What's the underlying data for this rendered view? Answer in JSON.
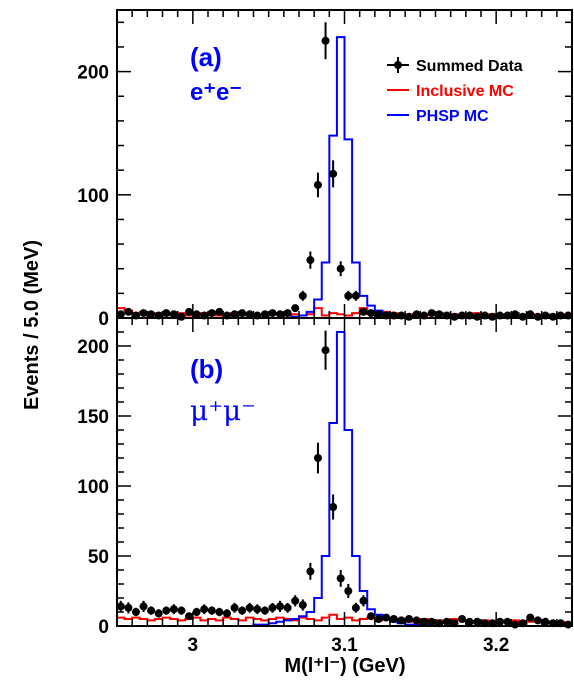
{
  "colors": {
    "data": "#000000",
    "inclusive_mc": "#ff0000",
    "phsp_mc": "#0000ff",
    "axis": "#000000"
  },
  "y_axis_title": "Events / 5.0 (MeV)",
  "x_axis_title": "M(l⁺l⁻) (GeV)",
  "legend": {
    "data": "Summed Data",
    "inclusive": "Inclusive MC",
    "phsp": "PHSP MC"
  },
  "panels": {
    "a": {
      "tag": "(a)",
      "channel": "e⁺e⁻"
    },
    "b": {
      "tag": "(b)",
      "channel": "μ⁺μ⁻"
    }
  },
  "chart_data": [
    {
      "type": "histogram",
      "panel": "(a)",
      "xlim": [
        2.95,
        3.25
      ],
      "ylim": [
        0,
        250
      ],
      "xticks": [
        3,
        3.1,
        3.2
      ],
      "yticks": [
        0,
        100,
        200
      ],
      "bin_width": 0.005,
      "data": {
        "x": [
          2.9525,
          2.9575,
          2.9625,
          2.9675,
          2.9725,
          2.9775,
          2.9825,
          2.9875,
          2.9925,
          2.9975,
          3.0025,
          3.0075,
          3.0125,
          3.0175,
          3.0225,
          3.0275,
          3.0325,
          3.0375,
          3.0425,
          3.0475,
          3.0525,
          3.0575,
          3.0625,
          3.0675,
          3.0725,
          3.0775,
          3.0825,
          3.0875,
          3.0925,
          3.0975,
          3.1025,
          3.1075,
          3.1125,
          3.1175,
          3.1225,
          3.1275,
          3.1325,
          3.1375,
          3.1425,
          3.1475,
          3.1525,
          3.1575,
          3.1625,
          3.1675,
          3.1725,
          3.1775,
          3.1825,
          3.1875,
          3.1925,
          3.1975,
          3.2025,
          3.2075,
          3.2125,
          3.2175,
          3.2225,
          3.2275,
          3.2325,
          3.2375,
          3.2425,
          3.2475
        ],
        "y": [
          3,
          5,
          2,
          4,
          3,
          2,
          4,
          3,
          1,
          5,
          3,
          2,
          4,
          5,
          2,
          3,
          4,
          3,
          2,
          3,
          4,
          3,
          4,
          8,
          18,
          47,
          108,
          225,
          117,
          40,
          18,
          18,
          5,
          4,
          3,
          2,
          2,
          2,
          1,
          3,
          2,
          4,
          3,
          2,
          1,
          2,
          2,
          1,
          2,
          1,
          2,
          2,
          3,
          1,
          3,
          1,
          2,
          1,
          2,
          2
        ],
        "yerr": [
          2,
          2,
          1.5,
          2,
          2,
          1.5,
          2,
          2,
          1,
          2,
          2,
          1.5,
          2,
          2,
          1.5,
          2,
          2,
          2,
          1.5,
          2,
          2,
          2,
          2,
          3,
          4,
          7,
          10,
          15,
          11,
          6,
          4,
          4,
          2,
          2,
          2,
          1.5,
          1.5,
          1.5,
          1,
          2,
          1.5,
          2,
          2,
          1.5,
          1,
          1.5,
          1.5,
          1,
          1.5,
          1,
          1.5,
          1.5,
          2,
          1,
          2,
          1,
          1.5,
          1,
          1.5,
          1.5
        ]
      },
      "series": [
        {
          "name": "Inclusive MC",
          "edges": [
            2.95,
            2.955,
            2.96,
            2.965,
            2.97,
            2.975,
            2.98,
            2.985,
            2.99,
            2.995,
            3.0,
            3.005,
            3.01,
            3.015,
            3.02,
            3.025,
            3.03,
            3.035,
            3.04,
            3.045,
            3.05,
            3.055,
            3.06,
            3.065,
            3.07,
            3.075,
            3.08,
            3.085,
            3.09,
            3.095,
            3.1,
            3.105,
            3.11,
            3.115,
            3.12,
            3.125,
            3.13,
            3.135,
            3.14,
            3.145,
            3.15,
            3.155,
            3.16,
            3.165,
            3.17,
            3.175,
            3.18,
            3.185,
            3.19,
            3.195,
            3.2,
            3.205,
            3.21,
            3.215,
            3.22,
            3.225,
            3.23,
            3.235,
            3.24,
            3.245,
            3.25
          ],
          "values": [
            8,
            6,
            4,
            5,
            3,
            4,
            2,
            3,
            4,
            2,
            3,
            4,
            3,
            2,
            3,
            4,
            2,
            3,
            2,
            3,
            4,
            3,
            2,
            3,
            2,
            3,
            8,
            2,
            4,
            3,
            2,
            4,
            8,
            3,
            2,
            5,
            4,
            3,
            2,
            3,
            2,
            3,
            4,
            2,
            3,
            2,
            3,
            4,
            2,
            3,
            2,
            3,
            4,
            2,
            3,
            2,
            3,
            2,
            3,
            2
          ]
        },
        {
          "name": "PHSP MC",
          "edges": [
            2.95,
            2.955,
            2.96,
            2.965,
            2.97,
            2.975,
            2.98,
            2.985,
            2.99,
            2.995,
            3.0,
            3.005,
            3.01,
            3.015,
            3.02,
            3.025,
            3.03,
            3.035,
            3.04,
            3.045,
            3.05,
            3.055,
            3.06,
            3.065,
            3.07,
            3.075,
            3.08,
            3.085,
            3.09,
            3.095,
            3.1,
            3.105,
            3.11,
            3.115,
            3.12,
            3.125,
            3.13,
            3.135,
            3.14,
            3.145,
            3.15,
            3.155,
            3.16,
            3.165,
            3.17,
            3.175,
            3.18,
            3.185,
            3.19,
            3.195,
            3.2,
            3.205,
            3.21,
            3.215,
            3.22,
            3.225,
            3.23,
            3.235,
            3.24,
            3.245,
            3.25
          ],
          "values": [
            0,
            0,
            0,
            0,
            0,
            0,
            0,
            0,
            0,
            0,
            0,
            0,
            0,
            0,
            0,
            0,
            0,
            0,
            0,
            0,
            0,
            0,
            0,
            1,
            2,
            5,
            15,
            45,
            148,
            228,
            145,
            45,
            18,
            10,
            6,
            4,
            2,
            1,
            1,
            0,
            0,
            0,
            0,
            0,
            0,
            0,
            0,
            0,
            0,
            0,
            0,
            0,
            0,
            0,
            0,
            0,
            0,
            0,
            0,
            0
          ]
        }
      ]
    },
    {
      "type": "histogram",
      "panel": "(b)",
      "xlim": [
        2.95,
        3.25
      ],
      "ylim": [
        0,
        220
      ],
      "xticks": [
        3,
        3.1,
        3.2
      ],
      "yticks": [
        0,
        50,
        100,
        150,
        200
      ],
      "bin_width": 0.005,
      "data": {
        "x": [
          2.9525,
          2.9575,
          2.9625,
          2.9675,
          2.9725,
          2.9775,
          2.9825,
          2.9875,
          2.9925,
          2.9975,
          3.0025,
          3.0075,
          3.0125,
          3.0175,
          3.0225,
          3.0275,
          3.0325,
          3.0375,
          3.0425,
          3.0475,
          3.0525,
          3.0575,
          3.0625,
          3.0675,
          3.0725,
          3.0775,
          3.0825,
          3.0875,
          3.0925,
          3.0975,
          3.1025,
          3.1075,
          3.1125,
          3.1175,
          3.1225,
          3.1275,
          3.1325,
          3.1375,
          3.1425,
          3.1475,
          3.1525,
          3.1575,
          3.1625,
          3.1675,
          3.1725,
          3.1775,
          3.1825,
          3.1875,
          3.1925,
          3.1975,
          3.2025,
          3.2075,
          3.2125,
          3.2175,
          3.2225,
          3.2275,
          3.2325,
          3.2375,
          3.2425,
          3.2475
        ],
        "y": [
          14,
          13,
          10,
          14,
          11,
          9,
          11,
          12,
          11,
          7,
          10,
          12,
          11,
          10,
          9,
          13,
          11,
          13,
          12,
          11,
          13,
          14,
          13,
          18,
          15,
          39,
          120,
          197,
          85,
          34,
          25,
          13,
          18,
          7,
          5,
          6,
          5,
          4,
          5,
          4,
          3,
          3,
          2,
          3,
          2,
          5,
          3,
          3,
          2,
          2,
          3,
          3,
          1,
          2,
          6,
          4,
          3,
          2,
          2,
          1
        ],
        "yerr": [
          4,
          4,
          3,
          4,
          3,
          3,
          3,
          3.5,
          3,
          2.5,
          3,
          3.5,
          3,
          3,
          3,
          3.5,
          3,
          3.5,
          3.5,
          3,
          3.5,
          4,
          3.5,
          4,
          4,
          6,
          11,
          14,
          9,
          6,
          5,
          3.5,
          4,
          2.5,
          2,
          2.5,
          2,
          2,
          2,
          2,
          2,
          2,
          1.5,
          2,
          1.5,
          2,
          2,
          2,
          1.5,
          1.5,
          2,
          2,
          1,
          1.5,
          2.5,
          2,
          2,
          1.5,
          1.5,
          1
        ]
      },
      "series": [
        {
          "name": "Inclusive MC",
          "edges": [
            2.95,
            2.955,
            2.96,
            2.965,
            2.97,
            2.975,
            2.98,
            2.985,
            2.99,
            2.995,
            3.0,
            3.005,
            3.01,
            3.015,
            3.02,
            3.025,
            3.03,
            3.035,
            3.04,
            3.045,
            3.05,
            3.055,
            3.06,
            3.065,
            3.07,
            3.075,
            3.08,
            3.085,
            3.09,
            3.095,
            3.1,
            3.105,
            3.11,
            3.115,
            3.12,
            3.125,
            3.13,
            3.135,
            3.14,
            3.145,
            3.15,
            3.155,
            3.16,
            3.165,
            3.17,
            3.175,
            3.18,
            3.185,
            3.19,
            3.195,
            3.2,
            3.205,
            3.21,
            3.215,
            3.22,
            3.225,
            3.23,
            3.235,
            3.24,
            3.245,
            3.25
          ],
          "values": [
            6,
            5,
            6,
            5,
            4,
            5,
            6,
            5,
            4,
            5,
            6,
            4,
            5,
            4,
            6,
            5,
            4,
            6,
            5,
            4,
            5,
            6,
            5,
            4,
            6,
            5,
            4,
            6,
            8,
            5,
            6,
            4,
            5,
            6,
            4,
            5,
            4,
            5,
            3,
            4,
            5,
            3,
            4,
            3,
            5,
            4,
            3,
            2,
            4,
            3,
            4,
            3,
            4,
            2,
            3,
            4,
            3,
            2,
            3,
            2
          ]
        },
        {
          "name": "PHSP MC",
          "edges": [
            2.95,
            2.955,
            2.96,
            2.965,
            2.97,
            2.975,
            2.98,
            2.985,
            2.99,
            2.995,
            3.0,
            3.005,
            3.01,
            3.015,
            3.02,
            3.025,
            3.03,
            3.035,
            3.04,
            3.045,
            3.05,
            3.055,
            3.06,
            3.065,
            3.07,
            3.075,
            3.08,
            3.085,
            3.09,
            3.095,
            3.1,
            3.105,
            3.11,
            3.115,
            3.12,
            3.125,
            3.13,
            3.135,
            3.14,
            3.145,
            3.15,
            3.155,
            3.16,
            3.165,
            3.17,
            3.175,
            3.18,
            3.185,
            3.19,
            3.195,
            3.2,
            3.205,
            3.21,
            3.215,
            3.22,
            3.225,
            3.23,
            3.235,
            3.24,
            3.245,
            3.25
          ],
          "values": [
            0,
            0,
            0,
            0,
            0,
            0,
            0,
            0,
            0,
            0,
            0,
            0,
            0,
            0,
            0,
            0,
            0,
            0,
            1,
            1,
            2,
            3,
            4,
            5,
            7,
            10,
            20,
            50,
            145,
            210,
            140,
            50,
            25,
            12,
            8,
            5,
            3,
            2,
            1,
            1,
            1,
            0,
            0,
            0,
            0,
            0,
            0,
            0,
            0,
            0,
            0,
            0,
            0,
            0,
            0,
            0,
            0,
            0,
            0,
            0
          ]
        }
      ]
    }
  ]
}
